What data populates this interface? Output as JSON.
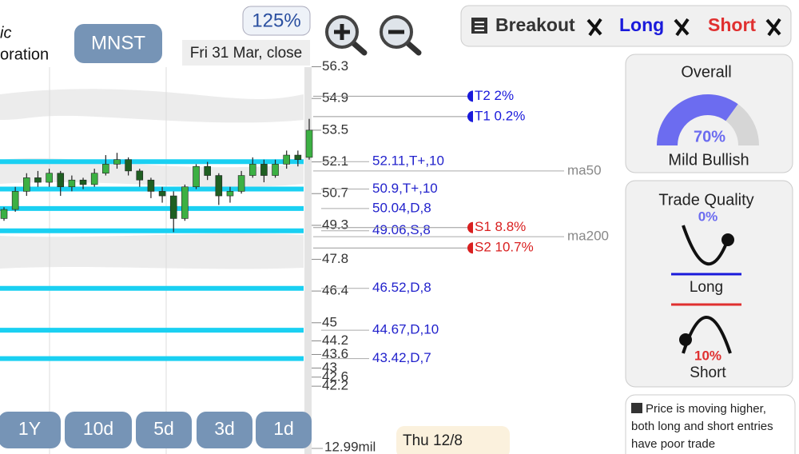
{
  "header": {
    "company_lines": [
      "ic",
      "oration"
    ],
    "ticker": "MNST",
    "zoom": "125%",
    "date": "Fri 31 Mar, close"
  },
  "filters": [
    {
      "label": "Breakout",
      "color": "#333333"
    },
    {
      "label": "Long",
      "color": "#1a1adb"
    },
    {
      "label": "Short",
      "color": "#e03030"
    }
  ],
  "chart_data": {
    "type": "candlestick",
    "ylim": [
      40.9,
      56.6
    ],
    "yticks": [
      56.3,
      54.9,
      53.5,
      52.1,
      50.7,
      49.3,
      47.8,
      46.4,
      45,
      44.2,
      43.6,
      43,
      42.6,
      42.2
    ],
    "open": [
      49.6,
      50.0,
      50.8,
      51.4,
      51.2,
      51.6,
      51.0,
      51.3,
      51.1,
      51.6,
      52.0,
      52.2,
      51.7,
      51.3,
      50.8,
      50.6,
      49.6,
      51.0,
      51.9,
      51.5,
      50.6,
      50.8,
      51.5,
      52.0,
      51.5,
      52.0,
      52.4,
      52.3
    ],
    "high": [
      50.1,
      51.0,
      51.6,
      51.7,
      51.8,
      51.7,
      51.5,
      51.4,
      51.8,
      52.4,
      52.5,
      52.3,
      51.8,
      51.4,
      51.0,
      50.8,
      51.1,
      52.0,
      52.1,
      51.6,
      51.0,
      51.7,
      52.3,
      52.2,
      52.2,
      52.6,
      52.6,
      54.0
    ],
    "low": [
      49.5,
      49.9,
      50.6,
      51.0,
      51.0,
      50.6,
      50.8,
      50.9,
      51.0,
      51.5,
      51.8,
      51.5,
      51.0,
      50.5,
      50.3,
      49.0,
      49.5,
      50.9,
      51.3,
      50.2,
      50.3,
      50.7,
      51.4,
      51.2,
      51.4,
      51.8,
      51.9,
      52.2
    ],
    "close": [
      50.0,
      50.8,
      51.4,
      51.2,
      51.6,
      51.0,
      51.3,
      51.1,
      51.6,
      52.0,
      52.2,
      51.7,
      51.3,
      50.8,
      50.6,
      49.6,
      51.0,
      51.9,
      51.5,
      50.6,
      50.8,
      51.5,
      52.0,
      51.5,
      52.0,
      52.4,
      52.2,
      53.5
    ],
    "up_color": "#3cb043",
    "down_color": "#1f5f22",
    "levels": [
      {
        "value": 52.11,
        "label": "52.11,T+,10"
      },
      {
        "value": 50.9,
        "label": "50.9,T+,10"
      },
      {
        "value": 50.04,
        "label": "50.04,D,8"
      },
      {
        "value": 49.06,
        "label": "49.06,S,8"
      },
      {
        "value": 46.52,
        "label": "46.52,D,8"
      },
      {
        "value": 44.67,
        "label": "44.67,D,10"
      },
      {
        "value": 43.42,
        "label": "43.42,D,7"
      }
    ],
    "level_color": "#1ad0f2",
    "targets": [
      {
        "value": 55.0,
        "label": "T2 2%",
        "color": "#1a1adb"
      },
      {
        "value": 54.1,
        "label": "T1 0.2%",
        "color": "#1a1adb"
      },
      {
        "value": 49.2,
        "label": "S1 8.8%",
        "color": "#d92020"
      },
      {
        "value": 48.3,
        "label": "S2 10.7%",
        "color": "#d92020"
      }
    ],
    "moving_averages": [
      {
        "name": "ma50",
        "value": 51.7
      },
      {
        "name": "ma200",
        "value": 48.8
      }
    ],
    "volume_label": "12.99mil",
    "cursor_date": "Thu 12/8"
  },
  "periods": [
    "1Y",
    "10d",
    "5d",
    "3d",
    "1d"
  ],
  "overall": {
    "title": "Overall",
    "value": 70,
    "value_label": "70%",
    "range": [
      0,
      100
    ],
    "label": "Mild Bullish"
  },
  "trade_quality": {
    "title": "Trade Quality",
    "long_value": "0%",
    "long_label": "Long",
    "short_value": "10%",
    "short_label": "Short"
  },
  "note": "Price is moving higher, both long and short entries have poor trade"
}
